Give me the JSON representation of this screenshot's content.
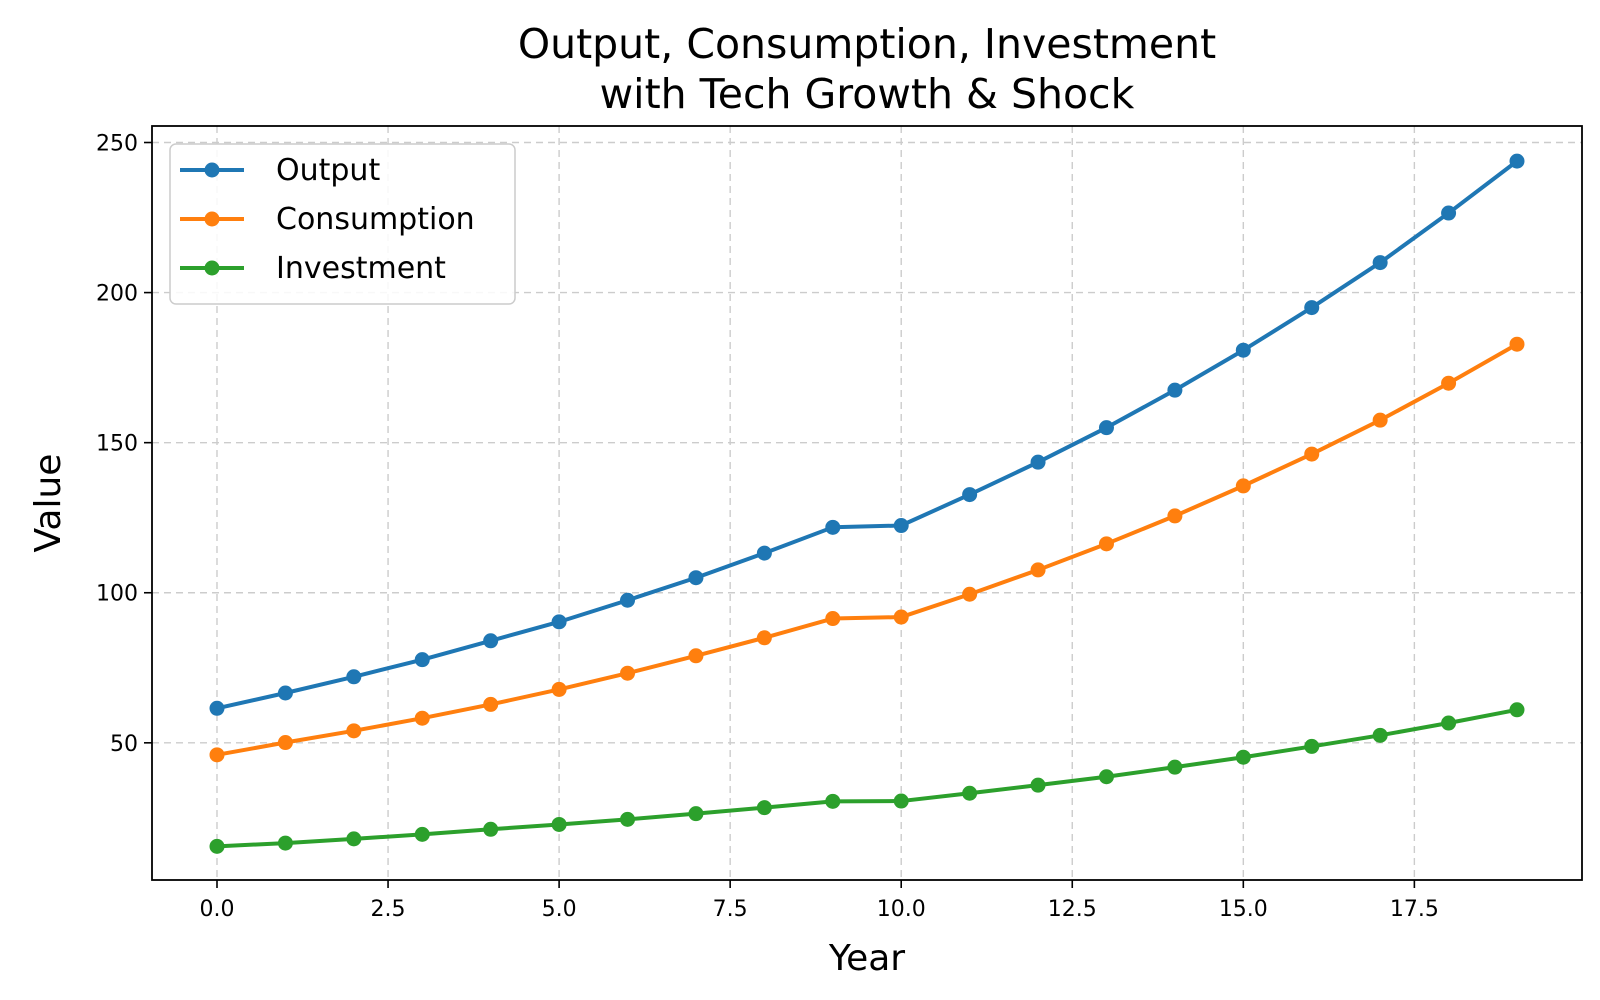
{
  "chart_data": {
    "type": "line",
    "title": [
      "Output, Consumption, Investment",
      "with Tech Growth & Shock"
    ],
    "xlabel": "Year",
    "ylabel": "Value",
    "xlim": [
      -0.95,
      19.95
    ],
    "ylim": [
      4.3,
      255.5
    ],
    "xticks": [
      0.0,
      2.5,
      5.0,
      7.5,
      10.0,
      12.5,
      15.0,
      17.5
    ],
    "xtick_labels": [
      "0.0",
      "2.5",
      "5.0",
      "7.5",
      "10.0",
      "12.5",
      "15.0",
      "17.5"
    ],
    "yticks": [
      50,
      100,
      150,
      200,
      250
    ],
    "ytick_labels": [
      "50",
      "100",
      "150",
      "200",
      "250"
    ],
    "grid": true,
    "legend_position": "top-left",
    "x": [
      0,
      1,
      2,
      3,
      4,
      5,
      6,
      7,
      8,
      9,
      10,
      11,
      12,
      13,
      14,
      15,
      16,
      17,
      18,
      19
    ],
    "series": [
      {
        "name": "Output",
        "color": "#1f77b4",
        "marker": "circle",
        "values": [
          61.5,
          66.6,
          72.0,
          77.7,
          84.0,
          90.3,
          97.5,
          105.0,
          113.2,
          121.8,
          122.4,
          132.7,
          143.5,
          155.0,
          167.5,
          180.8,
          195.0,
          210.0,
          226.5,
          243.8
        ]
      },
      {
        "name": "Consumption",
        "color": "#ff7f0e",
        "marker": "circle",
        "values": [
          46.0,
          50.1,
          54.0,
          58.2,
          62.8,
          67.8,
          73.2,
          79.0,
          85.0,
          91.4,
          91.9,
          99.5,
          107.6,
          116.3,
          125.6,
          135.6,
          146.2,
          157.5,
          169.8,
          182.8
        ]
      },
      {
        "name": "Investment",
        "color": "#2ca02c",
        "marker": "circle",
        "values": [
          15.5,
          16.6,
          18.0,
          19.5,
          21.2,
          22.8,
          24.5,
          26.4,
          28.4,
          30.5,
          30.6,
          33.2,
          35.9,
          38.7,
          41.9,
          45.2,
          48.8,
          52.5,
          56.6,
          61.0
        ]
      }
    ]
  }
}
